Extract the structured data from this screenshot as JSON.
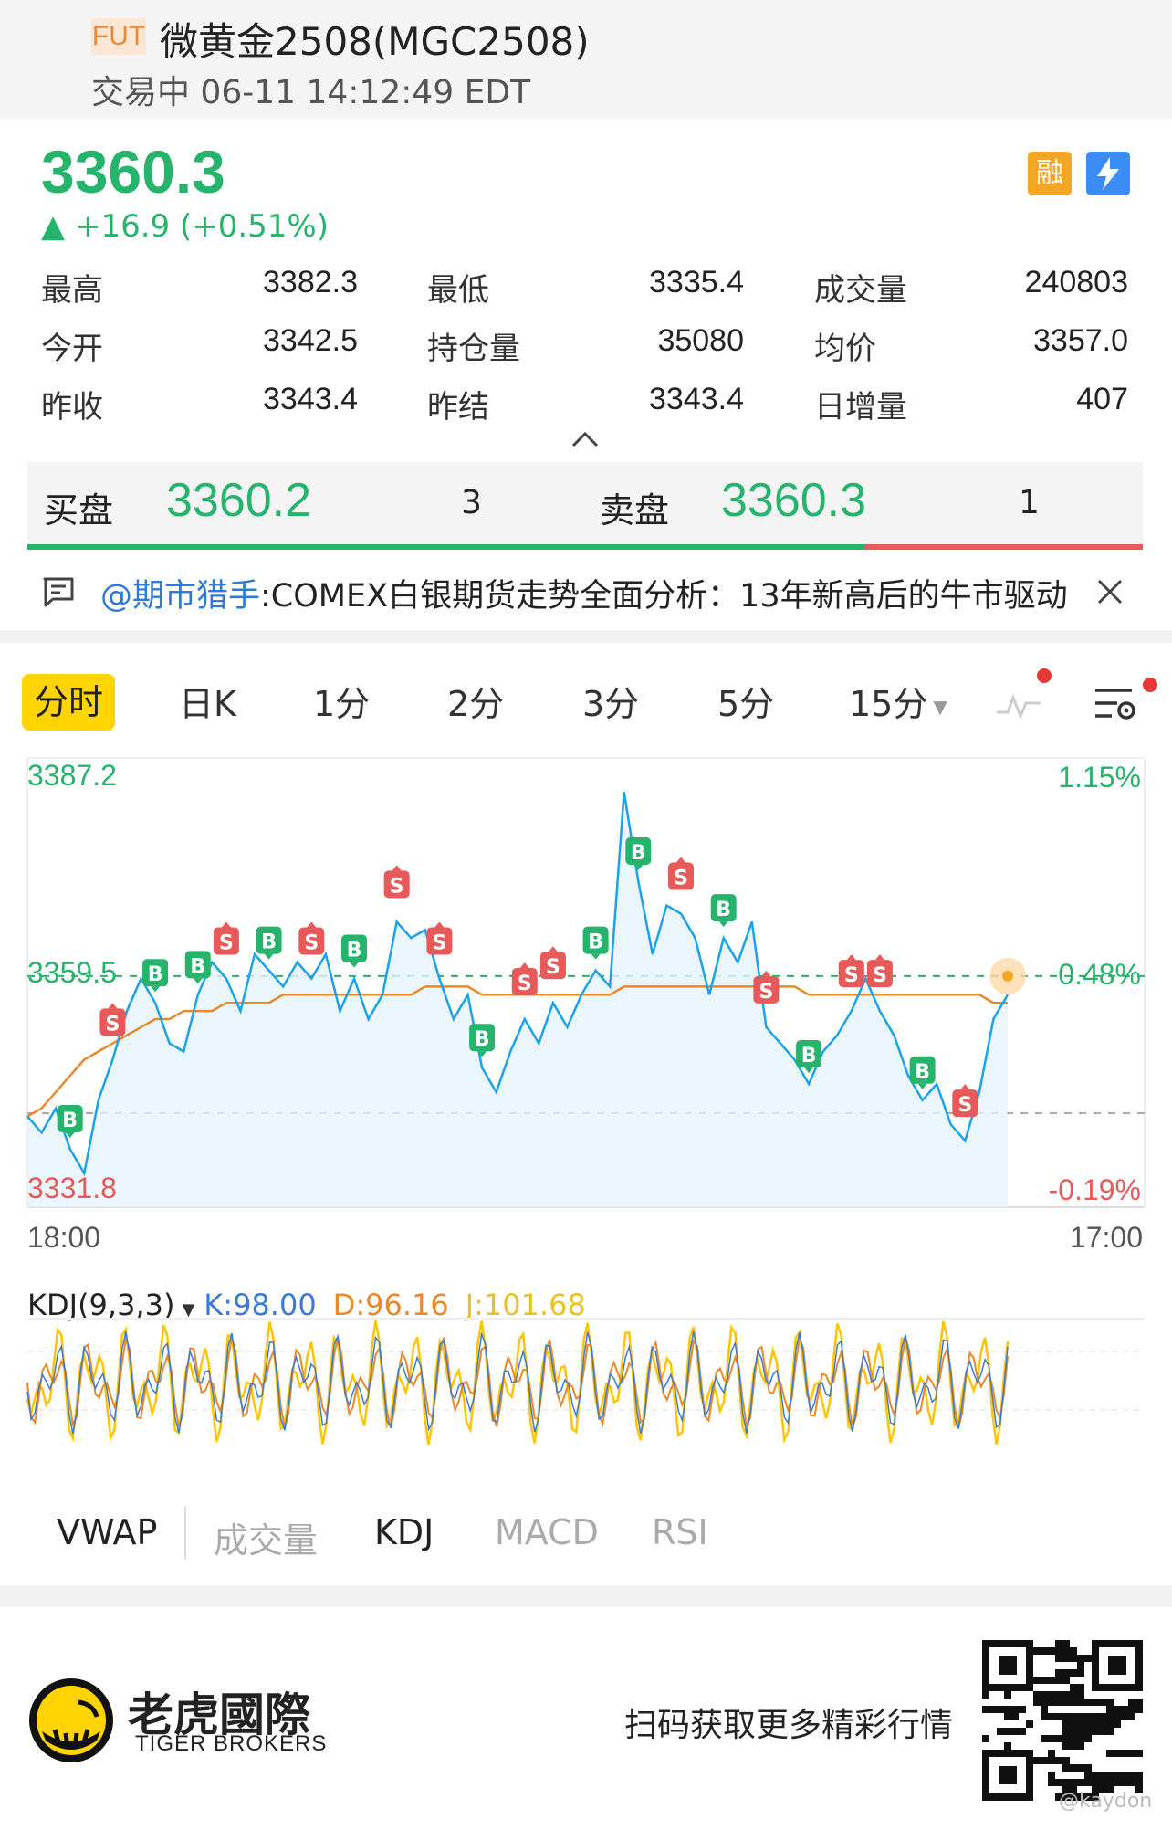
{
  "header": {
    "tag": "FUT",
    "title": "微黄金2508(MGC2508)",
    "status": "交易中 06-11 14:12:49 EDT"
  },
  "quote": {
    "price": "3360.3",
    "change": "+16.9 (+0.51%)",
    "badges": [
      "融",
      "⚡"
    ],
    "stats": [
      {
        "label": "最高",
        "value": "3382.3"
      },
      {
        "label": "最低",
        "value": "3335.4"
      },
      {
        "label": "成交量",
        "value": "240803"
      },
      {
        "label": "今开",
        "value": "3342.5"
      },
      {
        "label": "持仓量",
        "value": "35080"
      },
      {
        "label": "均价",
        "value": "3357.0"
      },
      {
        "label": "昨收",
        "value": "3343.4"
      },
      {
        "label": "昨结",
        "value": "3343.4"
      },
      {
        "label": "日增量",
        "value": "407"
      }
    ]
  },
  "orderbook": {
    "bid_label": "买盘",
    "bid_price": "3360.2",
    "bid_qty": "3",
    "ask_label": "卖盘",
    "ask_price": "3360.3",
    "ask_qty": "1",
    "bid_ratio": 0.75
  },
  "news": {
    "user": "@期市猎手",
    "text": ":COMEX白银期货走势全面分析：13年新高后的牛市驱动"
  },
  "tabs": [
    "分时",
    "日K",
    "1分",
    "2分",
    "3分",
    "5分",
    "15分"
  ],
  "active_tab": "分时",
  "colors": {
    "up": "#26b36c",
    "down": "#e85a5a",
    "line": "#1aa3e8",
    "avg": "#e8892a",
    "accent": "#ffd400"
  },
  "chart_data": {
    "type": "line",
    "y_left_ticks": [
      "3387.2",
      "3359.5",
      "3331.8"
    ],
    "y_right_ticks": [
      "1.15%",
      "0.48%",
      "-0.19%"
    ],
    "x_ticks": [
      "18:00",
      "17:00"
    ],
    "ylim": [
      3331.8,
      3387.2
    ],
    "last_price": 3360.3,
    "prev_close": 3343.4,
    "series": [
      {
        "values": [
          3343,
          3341,
          3344,
          3339,
          3336,
          3345,
          3350,
          3356,
          3360,
          3357,
          3352,
          3351,
          3358,
          3362,
          3360,
          3356,
          3363,
          3361,
          3359,
          3362,
          3360,
          3363,
          3356,
          3360,
          3355,
          3358,
          3367,
          3365,
          3366,
          3360,
          3355,
          3358,
          3349,
          3346,
          3351,
          3355,
          3352,
          3357,
          3354,
          3358,
          3361,
          3359,
          3383,
          3372,
          3363,
          3369,
          3368,
          3365,
          3358,
          3365,
          3362,
          3367,
          3354,
          3352,
          3350,
          3347,
          3351,
          3353,
          3356,
          3360,
          3356,
          3353,
          3348,
          3345,
          3347,
          3342,
          3340,
          3346,
          3355,
          3358
        ]
      },
      {
        "values": [
          3343,
          3344,
          3346,
          3348,
          3350,
          3351,
          3352,
          3353,
          3354,
          3355,
          3355,
          3356,
          3356,
          3356,
          3357,
          3357,
          3357,
          3357,
          3358,
          3358,
          3358,
          3358,
          3358,
          3358,
          3358,
          3358,
          3358,
          3358,
          3359,
          3359,
          3359,
          3359,
          3358,
          3358,
          3358,
          3358,
          3358,
          3358,
          3358,
          3358,
          3358,
          3358,
          3359,
          3359,
          3359,
          3359,
          3359,
          3359,
          3359,
          3359,
          3359,
          3359,
          3359,
          3359,
          3359,
          3358,
          3358,
          3358,
          3358,
          3358,
          3358,
          3358,
          3358,
          3358,
          3358,
          3358,
          3358,
          3358,
          3357,
          3357
        ]
      }
    ],
    "markers": [
      "B",
      "S",
      "B",
      "B",
      "S",
      "B",
      "S",
      "B",
      "S",
      "S",
      "B",
      "S",
      "S",
      "B",
      "B",
      "S",
      "B",
      "S",
      "B",
      "S",
      "S",
      "B",
      "S"
    ]
  },
  "kdj": {
    "label": "KDJ(9,3,3)",
    "k": "K:98.00",
    "d": "D:96.16",
    "j": "J:101.68"
  },
  "indicator_tabs": [
    "VWAP",
    "成交量",
    "KDJ",
    "MACD",
    "RSI"
  ],
  "footer": {
    "brand_cn": "老虎國際",
    "brand_en": "TIGER BROKERS",
    "scan_text": "扫码获取更多精彩行情",
    "watermark": "@kaydon"
  }
}
